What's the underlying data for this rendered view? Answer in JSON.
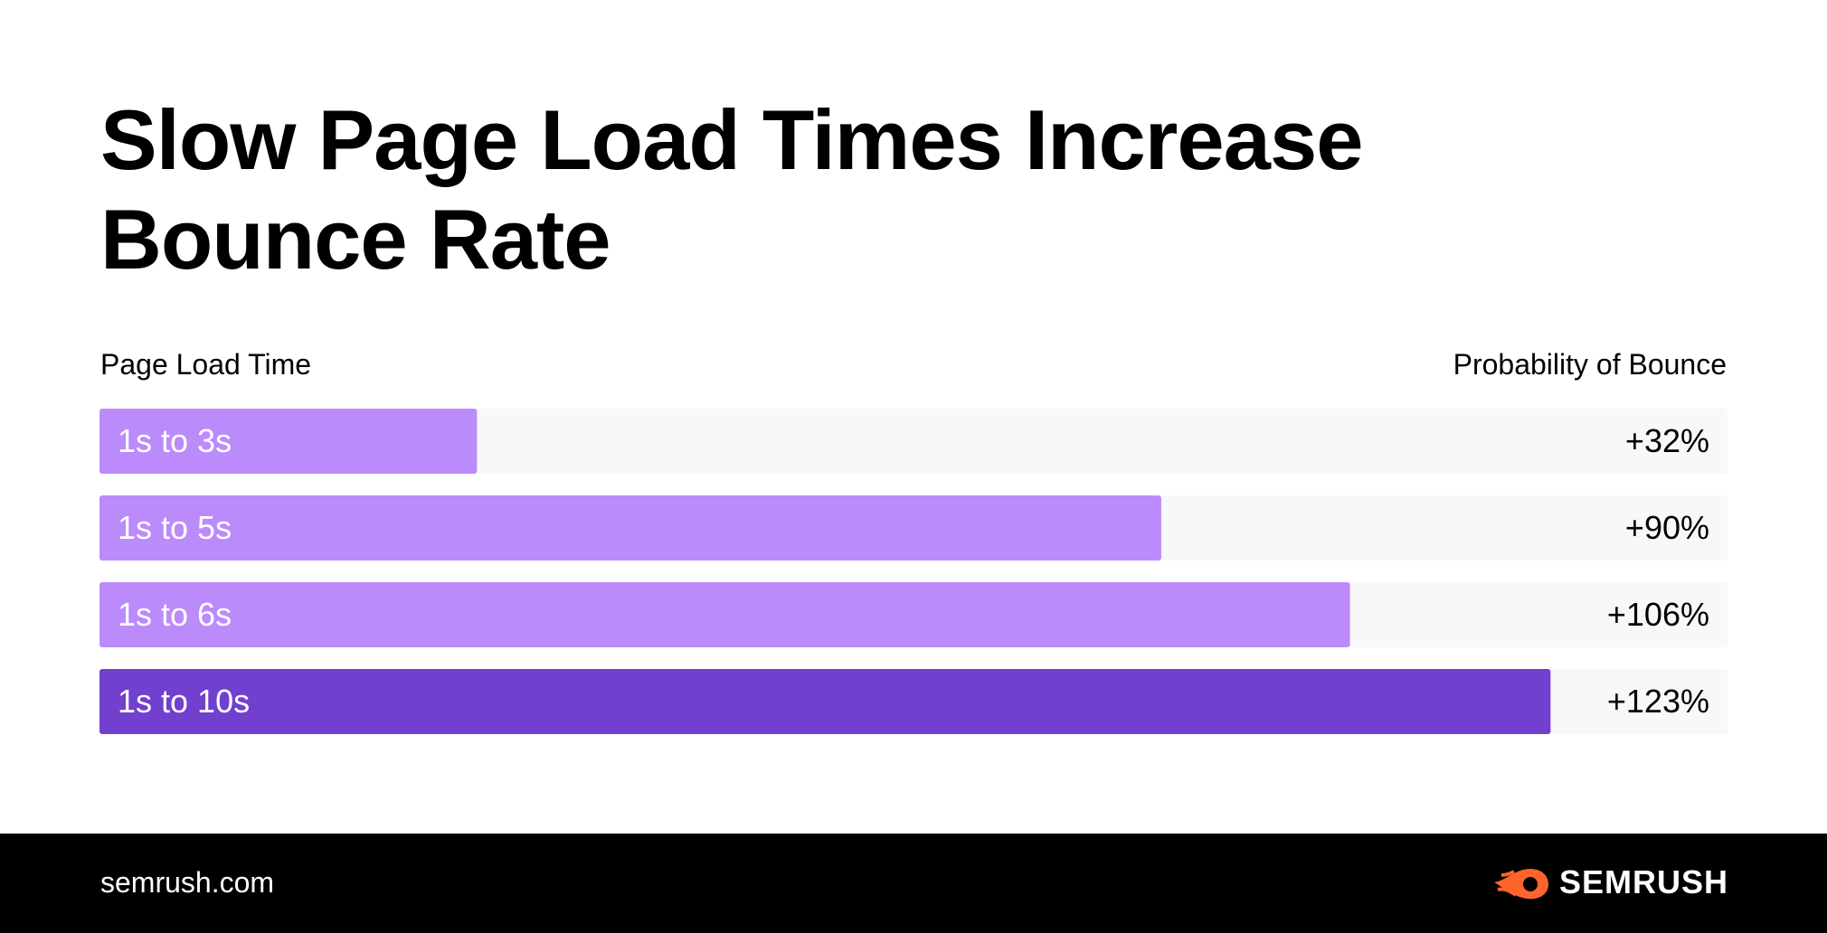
{
  "title": "Slow Page Load Times Increase Bounce Rate",
  "chart_data": {
    "type": "bar",
    "orientation": "horizontal",
    "categories": [
      "1s to 3s",
      "1s to 5s",
      "1s to 6s",
      "1s to 10s"
    ],
    "values": [
      32,
      90,
      106,
      123
    ],
    "value_labels": [
      "+32%",
      "+90%",
      "+106%",
      "+123%"
    ],
    "xlim": [
      0,
      138
    ],
    "column_left_label": "Page Load Time",
    "column_right_label": "Probability of Bounce",
    "colors": {
      "bar": "#bb8bfb",
      "highlight_bar": "#7140cf",
      "track": "#f8f7fa",
      "category_text": "#ffffff",
      "value_text": "#000000"
    },
    "highlight_index": 3
  },
  "footer": {
    "domain": "semrush.com",
    "brand": "SEMRUSH",
    "brand_icon": "semrush-fireball-icon",
    "brand_color": "#ff642d"
  }
}
